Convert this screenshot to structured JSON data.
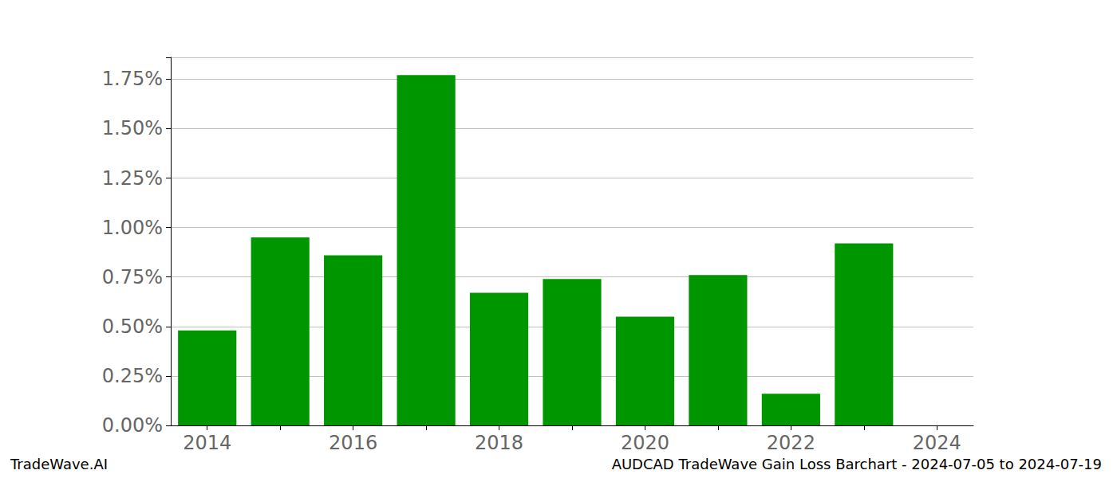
{
  "chart_data": {
    "type": "bar",
    "title": "AUDCAD TradeWave Gain Loss Barchart - 2024-07-05 to 2024-07-19",
    "annotations": [
      "TradeWave.AI"
    ],
    "categories": [
      "2014",
      null,
      "2016",
      null,
      "2018",
      null,
      "2020",
      null,
      "2022",
      null,
      "2024"
    ],
    "values": [
      0.48,
      0.95,
      0.86,
      1.77,
      0.67,
      0.74,
      0.55,
      0.76,
      0.16,
      0.92,
      null
    ],
    "color": "#009600",
    "ylim": [
      0,
      1.86
    ],
    "yticks": [
      {
        "value": 0,
        "label": "0.00%"
      },
      {
        "value": 0.25,
        "label": "0.25%"
      },
      {
        "value": 0.5,
        "label": "0.50%"
      },
      {
        "value": 0.75,
        "label": "0.75%"
      },
      {
        "value": 1.0,
        "label": "1.00%"
      },
      {
        "value": 1.25,
        "label": "1.25%"
      },
      {
        "value": 1.5,
        "label": "1.50%"
      },
      {
        "value": 1.75,
        "label": "1.75%"
      }
    ],
    "grid": true
  }
}
